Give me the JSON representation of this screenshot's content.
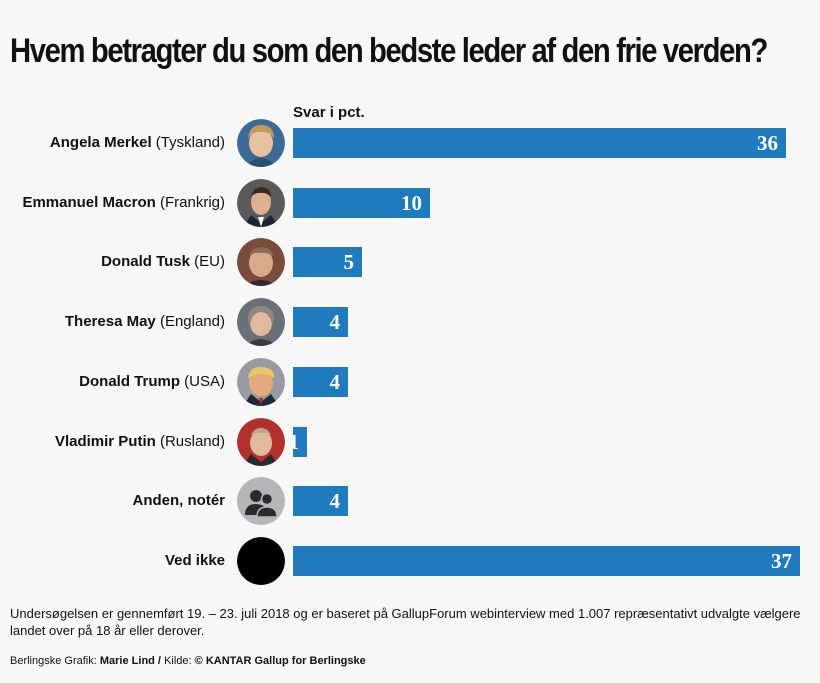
{
  "title": "Hvem betragter du som den bedste leder af den frie verden?",
  "unit_label": "Svar i pct.",
  "colors": {
    "bar": "#1f7bbd",
    "background": "#f7f7f7"
  },
  "chart_data": {
    "type": "bar",
    "orientation": "horizontal",
    "categories": [
      {
        "name": "Angela Merkel",
        "country": "(Tyskland)"
      },
      {
        "name": "Emmanuel Macron",
        "country": "(Frankrig)"
      },
      {
        "name": "Donald Tusk",
        "country": "(EU)"
      },
      {
        "name": "Theresa May",
        "country": "(England)"
      },
      {
        "name": "Donald Trump",
        "country": "(USA)"
      },
      {
        "name": "Vladimir Putin",
        "country": "(Rusland)"
      },
      {
        "name": "Anden, notér",
        "country": ""
      },
      {
        "name": "Ved ikke",
        "country": ""
      }
    ],
    "values": [
      36,
      10,
      5,
      4,
      4,
      1,
      4,
      37
    ],
    "value_labels": [
      "36",
      "10",
      "5",
      "4",
      "4",
      "1",
      "4",
      "37"
    ],
    "xlim": [
      0,
      37
    ],
    "grid": false,
    "legend": "none"
  },
  "avatars": [
    "merkel-portrait",
    "macron-portrait",
    "tusk-portrait",
    "may-portrait",
    "trump-portrait",
    "putin-portrait",
    "people-icon",
    "black-circle"
  ],
  "footnote": "Undersøgelsen er gennemført 19. – 23. juli 2018 og er baseret på GallupForum webinterview med 1.007 repræsentativt udvalgte vælgere landet over på 18 år eller derover.",
  "credit": {
    "prefix": "Berlingske Grafik:",
    "author": "Marie Lind /",
    "source_prefix": "Kilde:",
    "source": "© KANTAR Gallup for Berlingske"
  }
}
